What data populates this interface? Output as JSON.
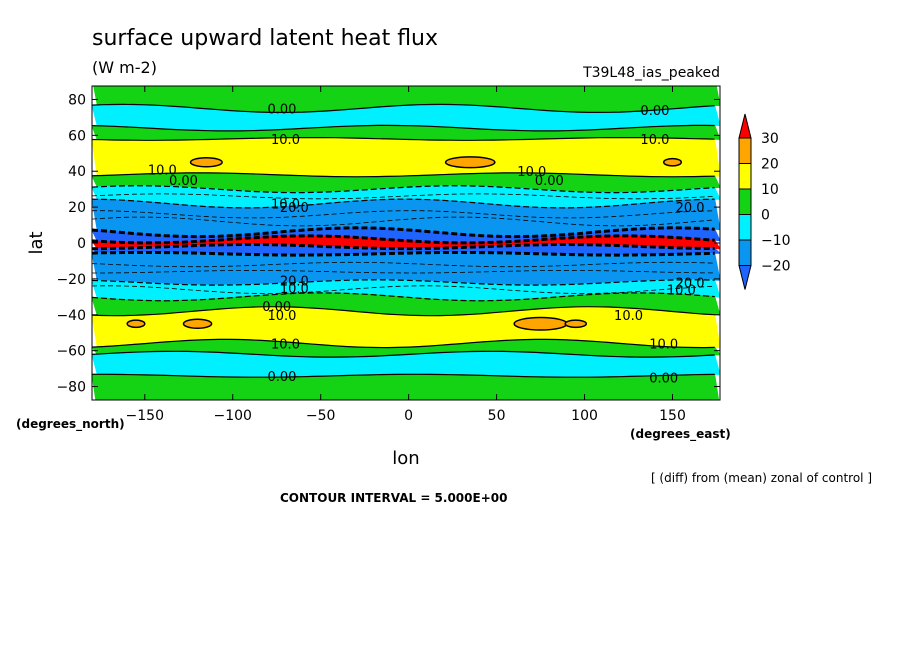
{
  "title": "surface upward latent heat flux",
  "units_label": "(W m-2)",
  "experiment": "T39L48_ias_peaked",
  "contour_interval": "CONTOUR INTERVAL = 5.000E+00",
  "note": "[ (diff) from (mean) zonal of control ]",
  "colors": {
    "lt-20": "#1e64ff",
    "-20to-10": "#0a96f0",
    "-10to0": "#00f0ff",
    "0to10": "#14d214",
    "10to20": "#ffff00",
    "20to30": "#ffa500",
    "gt30": "#ff0000"
  },
  "chart_data": {
    "type": "heatmap",
    "title": "surface upward latent heat flux",
    "xlabel": "lon",
    "ylabel": "lat",
    "x_unit": "(degrees_east)",
    "y_unit": "(degrees_north)",
    "xlim": [
      -180,
      177
    ],
    "ylim": [
      -87.5,
      87.5
    ],
    "x_ticks": [
      -150,
      -100,
      -50,
      0,
      50,
      100,
      150
    ],
    "y_ticks": [
      -80,
      -60,
      -40,
      -20,
      0,
      20,
      40,
      60,
      80
    ],
    "x_tick_labels": [
      "−150",
      "−100",
      "−50",
      "0",
      "50",
      "100",
      "150"
    ],
    "y_tick_labels": [
      "−80",
      "−60",
      "−40",
      "−20",
      "0",
      "20",
      "40",
      "60",
      "80"
    ],
    "colorbar": {
      "levels": [
        -20,
        -10,
        0,
        10,
        20,
        30
      ],
      "level_labels": [
        "−20",
        "−10",
        "0",
        "10",
        "20",
        "30"
      ],
      "colors": [
        "#1e64ff",
        "#0a96f0",
        "#00f0ff",
        "#14d214",
        "#ffff00",
        "#ffa500",
        "#ff0000"
      ],
      "extend": "both"
    },
    "zonal_bands": [
      {
        "lat": [
          75,
          87.5
        ],
        "class": "0to10"
      },
      {
        "lat": [
          64,
          75
        ],
        "class": "-10to0"
      },
      {
        "lat": [
          58,
          64
        ],
        "class": "0to10"
      },
      {
        "lat": [
          38,
          58
        ],
        "class": "10to20"
      },
      {
        "lat": [
          30,
          38
        ],
        "class": "0to10"
      },
      {
        "lat": [
          22,
          30
        ],
        "class": "-10to0"
      },
      {
        "lat": [
          6,
          22
        ],
        "class": "-20to-10"
      },
      {
        "lat": [
          2,
          6
        ],
        "class": "lt-20"
      },
      {
        "lat": [
          -2,
          2
        ],
        "class": "gt30"
      },
      {
        "lat": [
          -6,
          -2
        ],
        "class": "lt-20"
      },
      {
        "lat": [
          -22,
          -6
        ],
        "class": "-20to-10"
      },
      {
        "lat": [
          -30,
          -22
        ],
        "class": "-10to0"
      },
      {
        "lat": [
          -38,
          -30
        ],
        "class": "0to10"
      },
      {
        "lat": [
          -56,
          -38
        ],
        "class": "10to20"
      },
      {
        "lat": [
          -62,
          -56
        ],
        "class": "0to10"
      },
      {
        "lat": [
          -74,
          -62
        ],
        "class": "-10to0"
      },
      {
        "lat": [
          -87.5,
          -74
        ],
        "class": "0to10"
      }
    ],
    "maxima_20to30": [
      {
        "lon": -115,
        "lat": 45,
        "rlon": 9,
        "rlat": 2.5
      },
      {
        "lon": 35,
        "lat": 45,
        "rlon": 14,
        "rlat": 3
      },
      {
        "lon": 150,
        "lat": 45,
        "rlon": 5,
        "rlat": 2
      },
      {
        "lon": -120,
        "lat": -45,
        "rlon": 8,
        "rlat": 2.5
      },
      {
        "lon": 75,
        "lat": -45,
        "rlon": 15,
        "rlat": 3.5
      },
      {
        "lon": 95,
        "lat": -45,
        "rlon": 6,
        "rlat": 2
      },
      {
        "lon": -155,
        "lat": -45,
        "rlon": 5,
        "rlat": 2
      }
    ],
    "contour_labels": [
      {
        "text": "0.00",
        "lon": -72,
        "lat": 75
      },
      {
        "text": "0.00",
        "lon": 140,
        "lat": 74
      },
      {
        "text": "10.0",
        "lon": -70,
        "lat": 58
      },
      {
        "text": "10.0",
        "lon": 140,
        "lat": 58
      },
      {
        "text": "10.0",
        "lon": -140,
        "lat": 41
      },
      {
        "text": "0.00",
        "lon": -128,
        "lat": 35
      },
      {
        "text": "10.0",
        "lon": 70,
        "lat": 40
      },
      {
        "text": "0.00",
        "lon": 80,
        "lat": 35
      },
      {
        "text": "10.0",
        "lon": -70,
        "lat": 22
      },
      {
        "text": "20.0",
        "lon": -65,
        "lat": 20
      },
      {
        "text": "20.0",
        "lon": 160,
        "lat": 20
      },
      {
        "text": "20.0",
        "lon": -65,
        "lat": -21
      },
      {
        "text": "10.0",
        "lon": -65,
        "lat": -25
      },
      {
        "text": "20.0",
        "lon": 160,
        "lat": -22
      },
      {
        "text": "10.0",
        "lon": 155,
        "lat": -26
      },
      {
        "text": "0.00",
        "lon": -75,
        "lat": -35
      },
      {
        "text": "10.0",
        "lon": -72,
        "lat": -40
      },
      {
        "text": "10.0",
        "lon": 125,
        "lat": -40
      },
      {
        "text": "10.0",
        "lon": -70,
        "lat": -56
      },
      {
        "text": "10.0",
        "lon": 145,
        "lat": -56
      },
      {
        "text": "0.00",
        "lon": -72,
        "lat": -74
      },
      {
        "text": "0.00",
        "lon": 145,
        "lat": -75
      }
    ]
  }
}
